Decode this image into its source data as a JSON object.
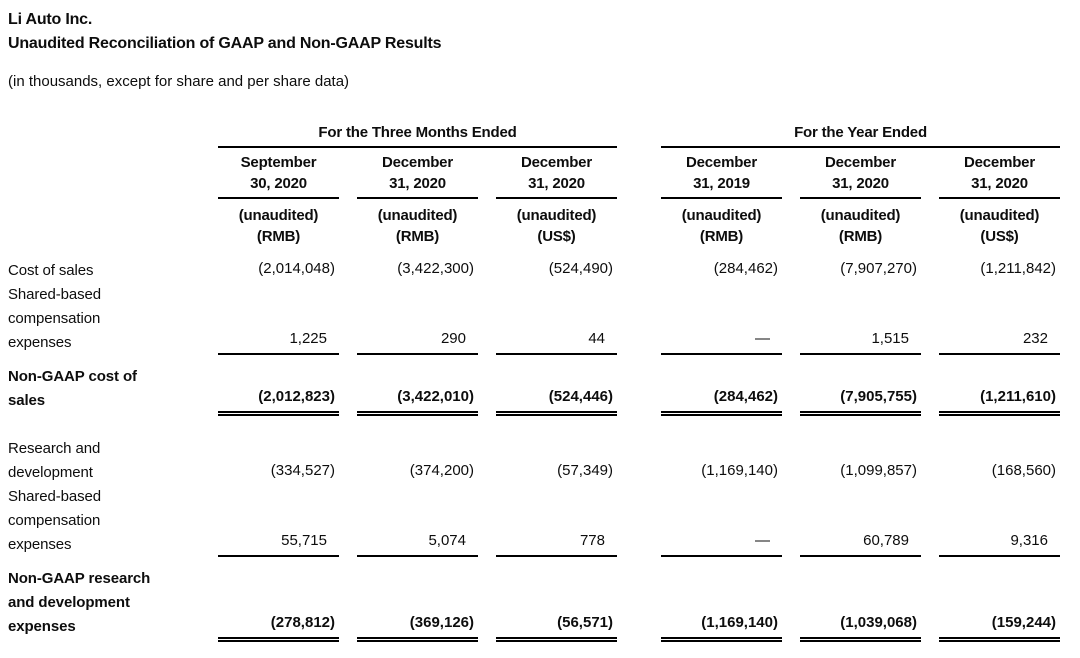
{
  "page": {
    "title": "Li Auto Inc.",
    "subtitle": "Unaudited Reconciliation of GAAP and Non-GAAP Results",
    "note": "(in thousands, except for share and per share data)"
  },
  "colors": {
    "text": "#0d0d0d",
    "rule": "#000000",
    "background": "#ffffff"
  },
  "table": {
    "col_groups": [
      {
        "label": "For the Three Months Ended",
        "span": 3
      },
      {
        "label": "For the Year Ended",
        "span": 3
      }
    ],
    "columns": [
      {
        "date_line1": "September",
        "date_line2": "30, 2020",
        "audit": "(unaudited)",
        "currency": "(RMB)"
      },
      {
        "date_line1": "December",
        "date_line2": "31, 2020",
        "audit": "(unaudited)",
        "currency": "(RMB)"
      },
      {
        "date_line1": "December",
        "date_line2": "31, 2020",
        "audit": "(unaudited)",
        "currency": "(US$)"
      },
      {
        "date_line1": "December",
        "date_line2": "31, 2019",
        "audit": "(unaudited)",
        "currency": "(RMB)"
      },
      {
        "date_line1": "December",
        "date_line2": "31, 2020",
        "audit": "(unaudited)",
        "currency": "(RMB)"
      },
      {
        "date_line1": "December",
        "date_line2": "31, 2020",
        "audit": "(unaudited)",
        "currency": "(US$)"
      }
    ],
    "rows": [
      {
        "label": "Cost of sales",
        "bold": false,
        "rule": "none",
        "gap_after": false,
        "values": [
          "(2,014,048)",
          "(3,422,300)",
          "(524,490)",
          "(284,462)",
          "(7,907,270)",
          "(1,211,842)"
        ]
      },
      {
        "label": "Shared-based compensation expenses",
        "bold": false,
        "rule": "single",
        "gap_after": false,
        "values": [
          "1,225",
          "290",
          "44",
          "—",
          "1,515",
          "232"
        ]
      },
      {
        "label": "Non-GAAP cost of sales",
        "bold": true,
        "rule": "double",
        "gap_after": true,
        "values": [
          "(2,012,823)",
          "(3,422,010)",
          "(524,446)",
          "(284,462)",
          "(7,905,755)",
          "(1,211,610)"
        ]
      },
      {
        "label": "Research and development",
        "bold": false,
        "rule": "none",
        "gap_after": false,
        "values": [
          "(334,527)",
          "(374,200)",
          "(57,349)",
          "(1,169,140)",
          "(1,099,857)",
          "(168,560)"
        ]
      },
      {
        "label": "Shared-based compensation expenses",
        "bold": false,
        "rule": "single",
        "gap_after": false,
        "values": [
          "55,715",
          "5,074",
          "778",
          "—",
          "60,789",
          "9,316"
        ]
      },
      {
        "label": "Non-GAAP research and development expenses",
        "bold": true,
        "rule": "double",
        "gap_after": false,
        "values": [
          "(278,812)",
          "(369,126)",
          "(56,571)",
          "(1,169,140)",
          "(1,039,068)",
          "(159,244)"
        ]
      }
    ]
  }
}
